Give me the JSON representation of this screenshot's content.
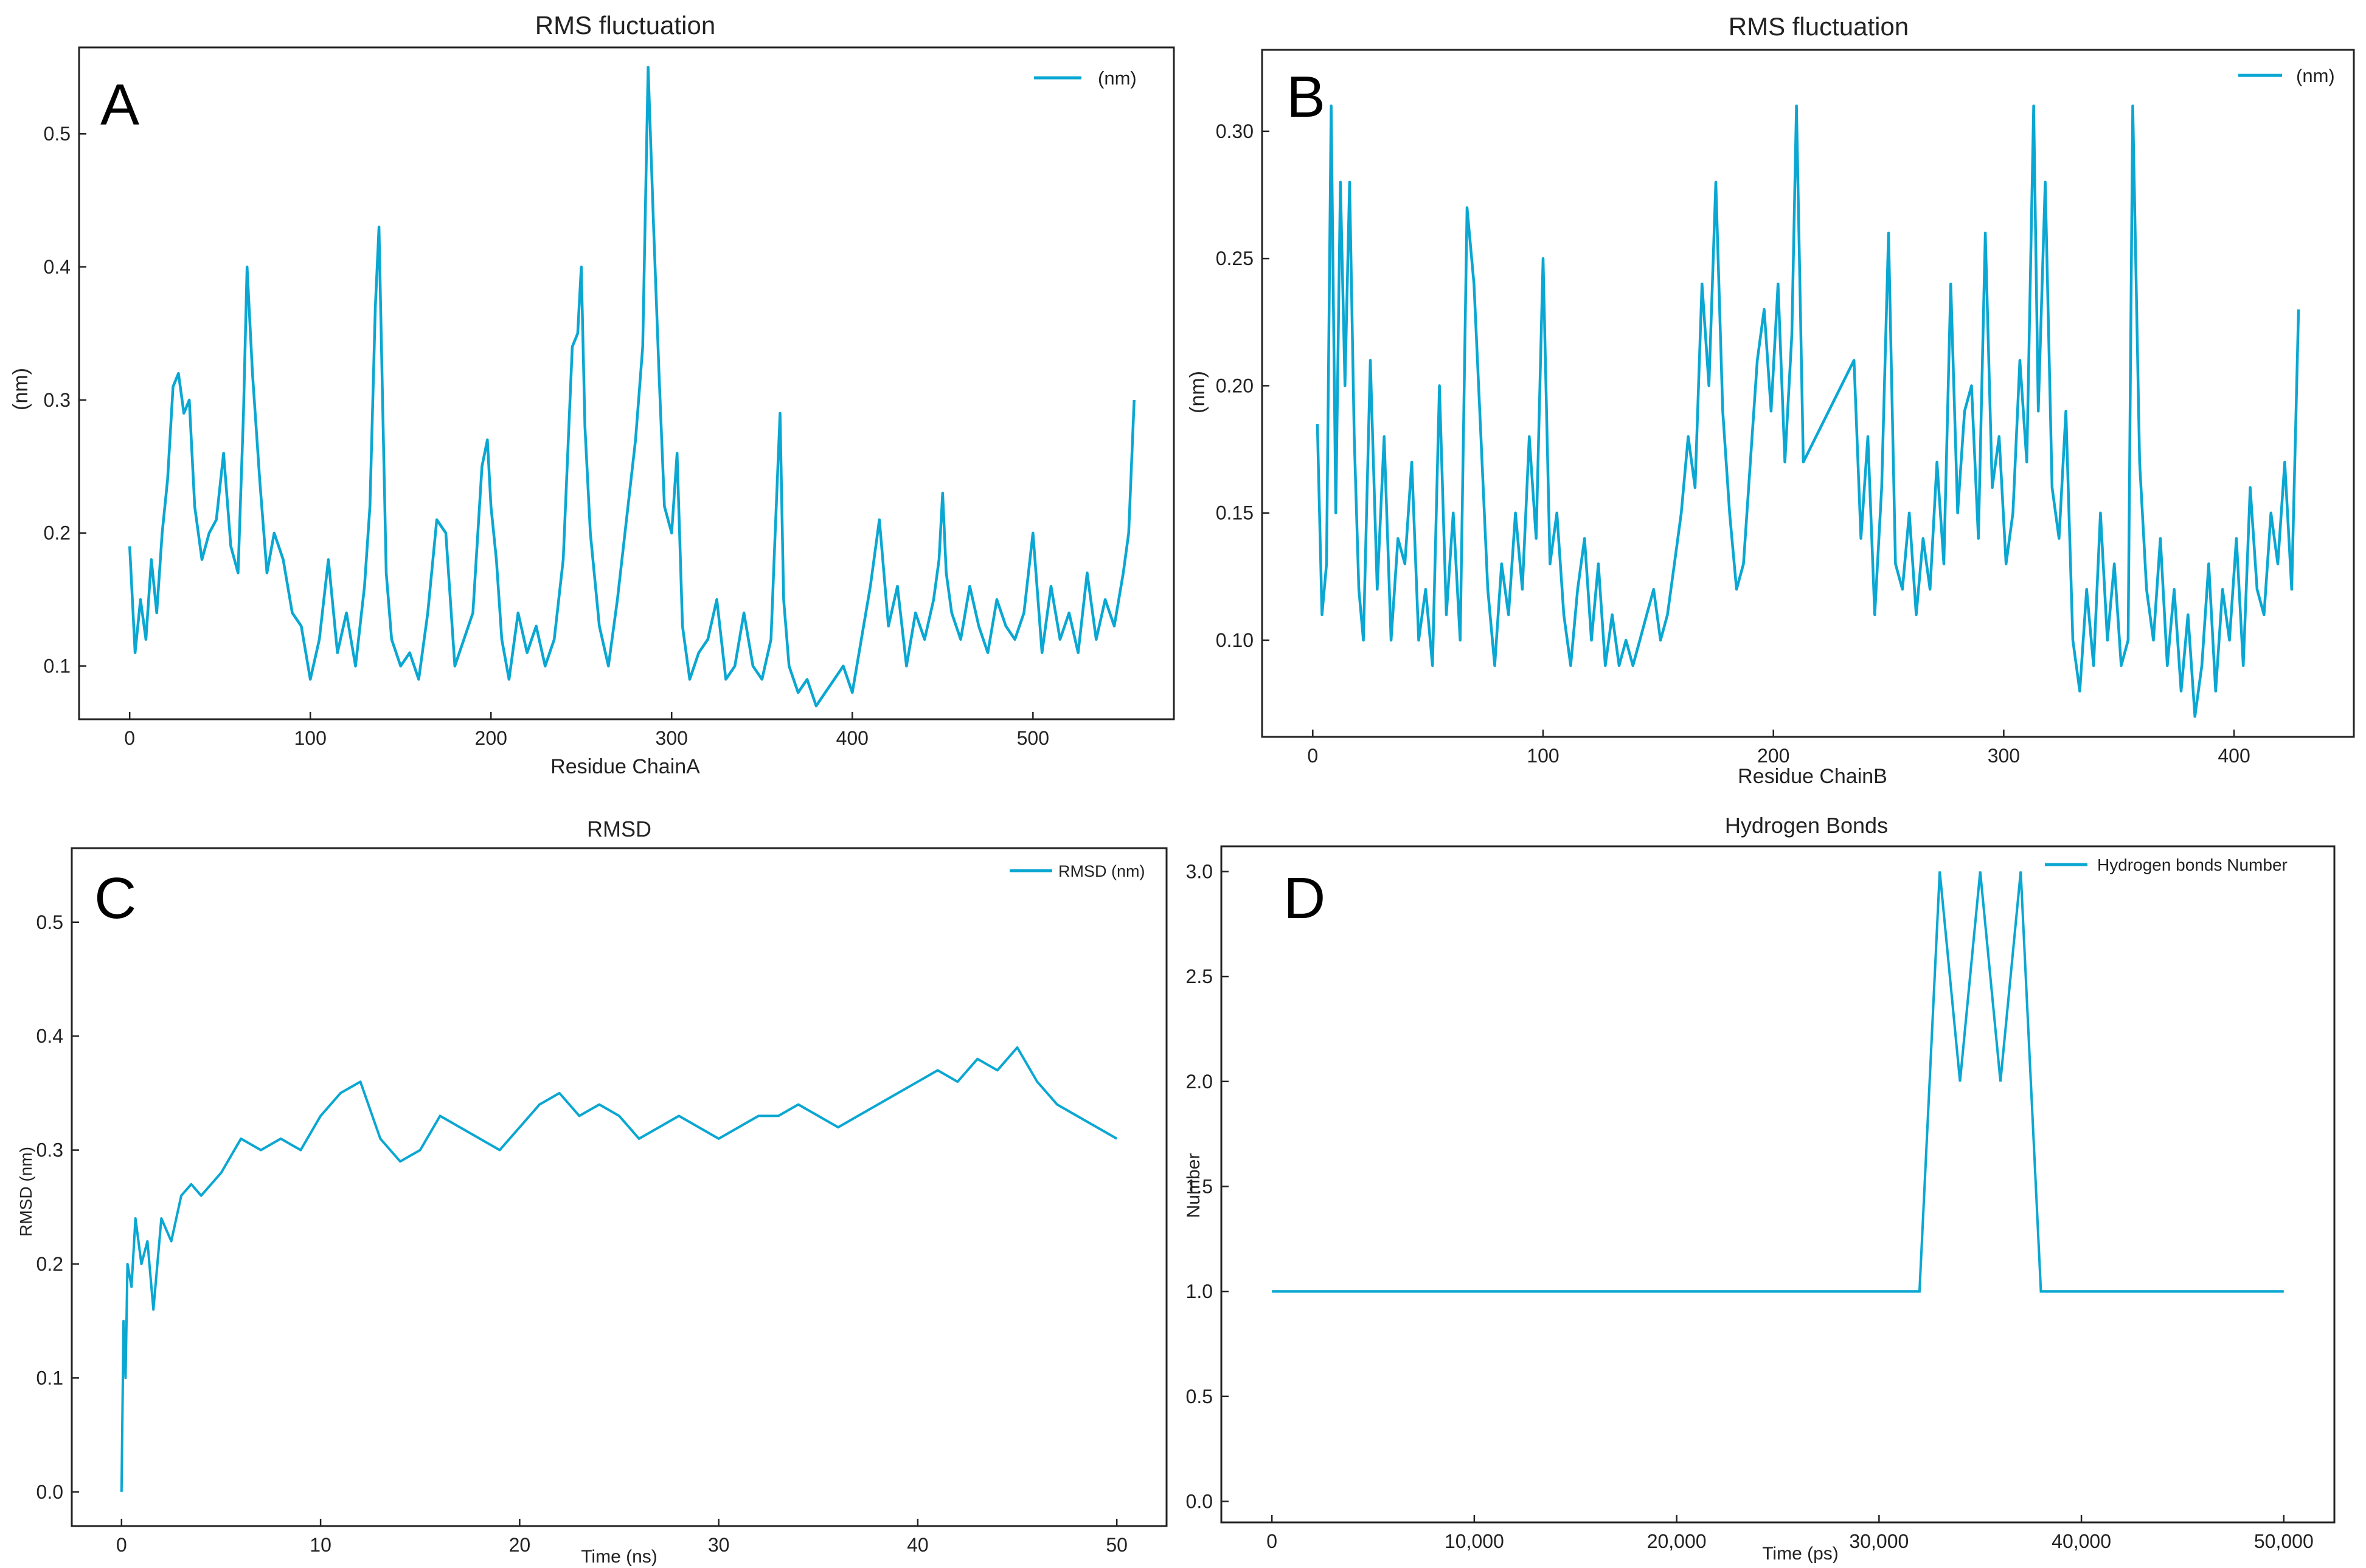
{
  "figure": {
    "panels": [
      "A",
      "B",
      "C",
      "D"
    ]
  },
  "chart_data": [
    {
      "id": "A",
      "type": "line",
      "panel_label": "A",
      "title": "RMS fluctuation",
      "xlabel": "Residue ChainA",
      "ylabel": "(nm)",
      "xlim": [
        -28,
        578
      ],
      "ylim": [
        0.06,
        0.565
      ],
      "xticks": [
        0,
        100,
        200,
        300,
        400,
        500
      ],
      "yticks": [
        0.1,
        0.2,
        0.3,
        0.4,
        0.5
      ],
      "xticklabels": [
        "0",
        "100",
        "200",
        "300",
        "400",
        "500"
      ],
      "yticklabels": [
        "0.1",
        "0.2",
        "0.3",
        "0.4",
        "0.5"
      ],
      "legend": "top-right",
      "color": "#0aa7d2",
      "series": [
        {
          "name": "(nm)",
          "x": [
            0,
            3,
            6,
            9,
            12,
            15,
            18,
            21,
            24,
            27,
            30,
            33,
            36,
            40,
            44,
            48,
            52,
            56,
            60,
            63,
            65,
            68,
            72,
            76,
            80,
            85,
            90,
            95,
            100,
            105,
            110,
            115,
            120,
            125,
            130,
            133,
            136,
            138,
            140,
            142,
            145,
            150,
            155,
            160,
            165,
            170,
            175,
            180,
            185,
            190,
            195,
            198,
            200,
            203,
            206,
            210,
            215,
            220,
            225,
            230,
            235,
            240,
            245,
            248,
            250,
            252,
            255,
            260,
            265,
            270,
            275,
            280,
            284,
            287,
            290,
            293,
            296,
            300,
            303,
            306,
            310,
            315,
            320,
            325,
            330,
            335,
            340,
            345,
            350,
            355,
            357,
            360,
            362,
            365,
            370,
            375,
            380,
            385,
            390,
            395,
            400,
            405,
            410,
            415,
            420,
            425,
            430,
            435,
            440,
            445,
            448,
            450,
            452,
            455,
            460,
            465,
            470,
            475,
            480,
            485,
            490,
            495,
            500,
            505,
            510,
            515,
            520,
            525,
            530,
            535,
            540,
            545,
            550,
            553,
            556
          ],
          "y": [
            0.19,
            0.11,
            0.15,
            0.12,
            0.18,
            0.14,
            0.2,
            0.24,
            0.31,
            0.32,
            0.29,
            0.3,
            0.22,
            0.18,
            0.2,
            0.21,
            0.26,
            0.19,
            0.17,
            0.29,
            0.4,
            0.32,
            0.24,
            0.17,
            0.2,
            0.18,
            0.14,
            0.13,
            0.09,
            0.12,
            0.18,
            0.11,
            0.14,
            0.1,
            0.16,
            0.22,
            0.37,
            0.43,
            0.3,
            0.17,
            0.12,
            0.1,
            0.11,
            0.09,
            0.14,
            0.21,
            0.2,
            0.1,
            0.12,
            0.14,
            0.25,
            0.27,
            0.22,
            0.18,
            0.12,
            0.09,
            0.14,
            0.11,
            0.13,
            0.1,
            0.12,
            0.18,
            0.34,
            0.35,
            0.4,
            0.28,
            0.2,
            0.13,
            0.1,
            0.15,
            0.21,
            0.27,
            0.34,
            0.55,
            0.43,
            0.32,
            0.22,
            0.2,
            0.26,
            0.13,
            0.09,
            0.11,
            0.12,
            0.15,
            0.09,
            0.1,
            0.14,
            0.1,
            0.09,
            0.12,
            0.19,
            0.29,
            0.15,
            0.1,
            0.08,
            0.09,
            0.07,
            0.08,
            0.09,
            0.1,
            0.08,
            0.12,
            0.16,
            0.21,
            0.13,
            0.16,
            0.1,
            0.14,
            0.12,
            0.15,
            0.18,
            0.23,
            0.17,
            0.14,
            0.12,
            0.16,
            0.13,
            0.11,
            0.15,
            0.13,
            0.12,
            0.14,
            0.2,
            0.11,
            0.16,
            0.12,
            0.14,
            0.11,
            0.17,
            0.12,
            0.15,
            0.13,
            0.17,
            0.2,
            0.3
          ]
        }
      ]
    },
    {
      "id": "B",
      "type": "line",
      "panel_label": "B",
      "title": "RMS fluctuation",
      "xlabel": "Residue ChainB",
      "ylabel": "(nm)",
      "xlim": [
        -22,
        452
      ],
      "ylim": [
        0.062,
        0.332
      ],
      "xticks": [
        0,
        100,
        200,
        300,
        400
      ],
      "yticks": [
        0.1,
        0.15,
        0.2,
        0.25,
        0.3
      ],
      "xticklabels": [
        "0",
        "100",
        "200",
        "300",
        "400"
      ],
      "yticklabels": [
        "0.10",
        "0.15",
        "0.20",
        "0.25",
        "0.30"
      ],
      "legend": "top-right",
      "color": "#0aa7d2",
      "series": [
        {
          "name": "(nm)",
          "x": [
            2,
            4,
            6,
            8,
            10,
            12,
            14,
            16,
            18,
            20,
            22,
            25,
            28,
            31,
            34,
            37,
            40,
            43,
            46,
            49,
            52,
            55,
            58,
            61,
            64,
            67,
            70,
            73,
            76,
            79,
            82,
            85,
            88,
            91,
            94,
            97,
            100,
            103,
            106,
            109,
            112,
            115,
            118,
            121,
            124,
            127,
            130,
            133,
            136,
            139,
            142,
            145,
            148,
            151,
            154,
            157,
            160,
            163,
            166,
            169,
            172,
            175,
            178,
            181,
            184,
            187,
            190,
            193,
            196,
            199,
            202,
            205,
            208,
            210,
            213,
            235,
            238,
            241,
            244,
            247,
            250,
            253,
            256,
            259,
            262,
            265,
            268,
            271,
            274,
            277,
            280,
            283,
            286,
            289,
            292,
            295,
            298,
            301,
            304,
            307,
            310,
            313,
            315,
            318,
            321,
            324,
            327,
            330,
            333,
            336,
            339,
            342,
            345,
            348,
            351,
            354,
            356,
            359,
            362,
            365,
            368,
            371,
            374,
            377,
            380,
            383,
            386,
            389,
            392,
            395,
            398,
            401,
            404,
            407,
            410,
            413,
            416,
            419,
            422,
            425,
            428
          ],
          "y": [
            0.185,
            0.11,
            0.13,
            0.31,
            0.15,
            0.28,
            0.2,
            0.28,
            0.18,
            0.12,
            0.1,
            0.21,
            0.12,
            0.18,
            0.1,
            0.14,
            0.13,
            0.17,
            0.1,
            0.12,
            0.09,
            0.2,
            0.11,
            0.15,
            0.1,
            0.27,
            0.24,
            0.18,
            0.12,
            0.09,
            0.13,
            0.11,
            0.15,
            0.12,
            0.18,
            0.14,
            0.25,
            0.13,
            0.15,
            0.11,
            0.09,
            0.12,
            0.14,
            0.1,
            0.13,
            0.09,
            0.11,
            0.09,
            0.1,
            0.09,
            0.1,
            0.11,
            0.12,
            0.1,
            0.11,
            0.13,
            0.15,
            0.18,
            0.16,
            0.24,
            0.2,
            0.28,
            0.19,
            0.15,
            0.12,
            0.13,
            0.17,
            0.21,
            0.23,
            0.19,
            0.24,
            0.17,
            0.22,
            0.31,
            0.17,
            0.21,
            0.14,
            0.18,
            0.11,
            0.16,
            0.26,
            0.13,
            0.12,
            0.15,
            0.11,
            0.14,
            0.12,
            0.17,
            0.13,
            0.24,
            0.15,
            0.19,
            0.2,
            0.14,
            0.26,
            0.16,
            0.18,
            0.13,
            0.15,
            0.21,
            0.17,
            0.31,
            0.19,
            0.28,
            0.16,
            0.14,
            0.19,
            0.1,
            0.08,
            0.12,
            0.09,
            0.15,
            0.1,
            0.13,
            0.09,
            0.1,
            0.31,
            0.17,
            0.12,
            0.1,
            0.14,
            0.09,
            0.12,
            0.08,
            0.11,
            0.07,
            0.09,
            0.13,
            0.08,
            0.12,
            0.1,
            0.14,
            0.09,
            0.16,
            0.12,
            0.11,
            0.15,
            0.13,
            0.17,
            0.12,
            0.23
          ]
        }
      ]
    },
    {
      "id": "C",
      "type": "line",
      "panel_label": "C",
      "title": "RMSD",
      "xlabel": "Time (ns)",
      "ylabel": "RMSD (nm)",
      "xlim": [
        -2.5,
        52.5
      ],
      "ylim": [
        -0.03,
        0.565
      ],
      "xticks": [
        0,
        10,
        20,
        30,
        40,
        50
      ],
      "yticks": [
        0.0,
        0.1,
        0.2,
        0.3,
        0.4,
        0.5
      ],
      "xticklabels": [
        "0",
        "10",
        "20",
        "30",
        "40",
        "50"
      ],
      "yticklabels": [
        "0.0",
        "0.1",
        "0.2",
        "0.3",
        "0.4",
        "0.5"
      ],
      "legend": "top-right",
      "color": "#0aa7d2",
      "series": [
        {
          "name": "RMSD (nm)",
          "x": [
            0,
            0.1,
            0.2,
            0.3,
            0.5,
            0.7,
            1,
            1.3,
            1.6,
            2,
            2.5,
            3,
            3.5,
            4,
            5,
            6,
            7,
            8,
            9,
            10,
            11,
            12,
            13,
            14,
            15,
            16,
            17,
            18,
            19,
            20,
            21,
            22,
            23,
            24,
            25,
            26,
            27,
            28,
            29,
            30,
            31,
            32,
            33,
            34,
            35,
            36,
            37,
            38,
            39,
            40,
            41,
            42,
            43,
            44,
            45,
            46,
            47,
            48,
            49,
            50
          ],
          "y": [
            0.0,
            0.15,
            0.1,
            0.2,
            0.18,
            0.24,
            0.2,
            0.22,
            0.16,
            0.24,
            0.22,
            0.26,
            0.27,
            0.26,
            0.28,
            0.31,
            0.3,
            0.31,
            0.3,
            0.33,
            0.35,
            0.36,
            0.31,
            0.29,
            0.3,
            0.33,
            0.32,
            0.31,
            0.3,
            0.32,
            0.34,
            0.35,
            0.33,
            0.34,
            0.33,
            0.31,
            0.32,
            0.33,
            0.32,
            0.31,
            0.32,
            0.33,
            0.33,
            0.34,
            0.33,
            0.32,
            0.33,
            0.34,
            0.35,
            0.36,
            0.37,
            0.36,
            0.38,
            0.37,
            0.39,
            0.36,
            0.34,
            0.33,
            0.32,
            0.31
          ]
        }
      ]
    },
    {
      "id": "D",
      "type": "line",
      "panel_label": "D",
      "title": "Hydrogen Bonds",
      "xlabel": "Time (ps)",
      "ylabel": "Number",
      "xlim": [
        -2500,
        52500
      ],
      "ylim": [
        -0.1,
        3.12
      ],
      "xticks": [
        0,
        10000,
        20000,
        30000,
        40000,
        50000
      ],
      "yticks": [
        0.0,
        0.5,
        1.0,
        1.5,
        2.0,
        2.5,
        3.0
      ],
      "xticklabels": [
        "0",
        "10,000",
        "20,000",
        "30,000",
        "40,000",
        "50,000"
      ],
      "yticklabels": [
        "0.0",
        "0.5",
        "1.0",
        "1.5",
        "2.0",
        "2.5",
        "3.0"
      ],
      "legend": "top-right",
      "color": "#0aa7d2",
      "series": [
        {
          "name": "Hydrogen bonds Number",
          "x": [
            0,
            2000,
            4000,
            6000,
            8000,
            10000,
            12000,
            14000,
            16000,
            18000,
            20000,
            22000,
            24000,
            26000,
            28000,
            30000,
            32000,
            33000,
            34000,
            35000,
            36000,
            37000,
            38000,
            40000,
            42000,
            44000,
            46000,
            48000,
            50000
          ],
          "y": [
            1,
            1,
            1,
            1,
            1,
            1,
            1,
            1,
            1,
            1,
            1,
            1,
            1,
            1,
            1,
            1,
            1,
            3,
            2,
            3,
            2,
            3,
            1,
            1,
            1,
            1,
            1,
            1,
            1
          ]
        }
      ]
    }
  ]
}
